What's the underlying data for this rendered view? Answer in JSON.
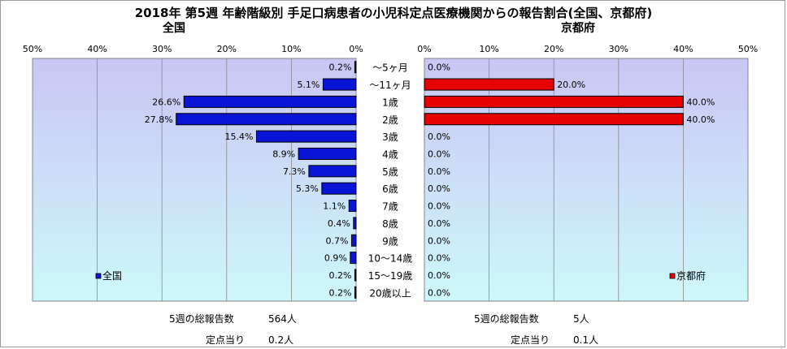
{
  "title": "2018年 第5週 年齢階級別 手足口病患者の小児科定点医療機関からの報告割合(全国、京都府)",
  "left_subtitle": "全国",
  "right_subtitle": "京都府",
  "left_footer": {
    "total_label": "5週の総報告数",
    "total_value": "564人",
    "per_label": "定点当り",
    "per_value": "0.2人"
  },
  "right_footer": {
    "total_label": "5週の総報告数",
    "total_value": "5人",
    "per_label": "定点当り",
    "per_value": "0.1人"
  },
  "colors": {
    "national": "#0a14d6",
    "kyoto": "#e60000",
    "bg_top": "#c9c6f3",
    "bg_bottom": "#cdf8fb"
  },
  "chart_data": [
    {
      "type": "bar",
      "orientation": "horizontal",
      "direction": "right-to-left",
      "title": "全国",
      "categories": [
        "～5ヶ月",
        "～11ヶ月",
        "1歳",
        "2歳",
        "3歳",
        "4歳",
        "5歳",
        "6歳",
        "7歳",
        "8歳",
        "9歳",
        "10～14歳",
        "15～19歳",
        "20歳以上"
      ],
      "series": [
        {
          "name": "全国",
          "values": [
            0.2,
            5.1,
            26.6,
            27.8,
            15.4,
            8.9,
            7.3,
            5.3,
            1.1,
            0.4,
            0.7,
            0.9,
            0.2,
            0.2
          ]
        }
      ],
      "xlim": [
        0,
        50
      ],
      "xticks": [
        "50%",
        "40%",
        "30%",
        "20%",
        "10%",
        "0%"
      ],
      "legend": "bottom-left",
      "grid": true
    },
    {
      "type": "bar",
      "orientation": "horizontal",
      "direction": "left-to-right",
      "title": "京都府",
      "categories": [
        "～5ヶ月",
        "～11ヶ月",
        "1歳",
        "2歳",
        "3歳",
        "4歳",
        "5歳",
        "6歳",
        "7歳",
        "8歳",
        "9歳",
        "10～14歳",
        "15～19歳",
        "20歳以上"
      ],
      "series": [
        {
          "name": "京都府",
          "values": [
            0.0,
            20.0,
            40.0,
            40.0,
            0.0,
            0.0,
            0.0,
            0.0,
            0.0,
            0.0,
            0.0,
            0.0,
            0.0,
            0.0
          ]
        }
      ],
      "xlim": [
        0,
        50
      ],
      "xticks": [
        "0%",
        "10%",
        "20%",
        "30%",
        "40%",
        "50%"
      ],
      "legend": "bottom-right",
      "grid": true
    }
  ]
}
